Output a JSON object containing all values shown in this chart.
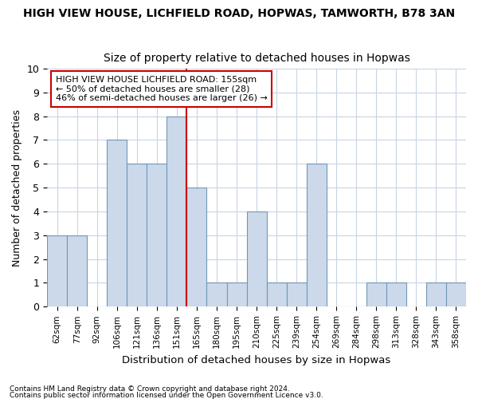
{
  "title1": "HIGH VIEW HOUSE, LICHFIELD ROAD, HOPWAS, TAMWORTH, B78 3AN",
  "title2": "Size of property relative to detached houses in Hopwas",
  "xlabel": "Distribution of detached houses by size in Hopwas",
  "ylabel": "Number of detached properties",
  "categories": [
    "62sqm",
    "77sqm",
    "92sqm",
    "106sqm",
    "121sqm",
    "136sqm",
    "151sqm",
    "165sqm",
    "180sqm",
    "195sqm",
    "210sqm",
    "225sqm",
    "239sqm",
    "254sqm",
    "269sqm",
    "284sqm",
    "298sqm",
    "313sqm",
    "328sqm",
    "343sqm",
    "358sqm"
  ],
  "values": [
    3,
    3,
    0,
    7,
    6,
    6,
    8,
    5,
    1,
    1,
    4,
    1,
    1,
    6,
    0,
    0,
    1,
    1,
    0,
    1,
    1
  ],
  "bar_color": "#ccd9ea",
  "bar_edge_color": "#7098b8",
  "highlight_index": 6,
  "highlight_line_color": "#cc0000",
  "ylim": [
    0,
    10
  ],
  "yticks": [
    0,
    1,
    2,
    3,
    4,
    5,
    6,
    7,
    8,
    9,
    10
  ],
  "annotation_text": "HIGH VIEW HOUSE LICHFIELD ROAD: 155sqm\n← 50% of detached houses are smaller (28)\n46% of semi-detached houses are larger (26) →",
  "annotation_box_color": "#ffffff",
  "annotation_box_edge": "#cc0000",
  "footer1": "Contains HM Land Registry data © Crown copyright and database right 2024.",
  "footer2": "Contains public sector information licensed under the Open Government Licence v3.0.",
  "background_color": "#ffffff",
  "grid_color": "#c8d4e4",
  "title1_fontsize": 10,
  "title2_fontsize": 10
}
